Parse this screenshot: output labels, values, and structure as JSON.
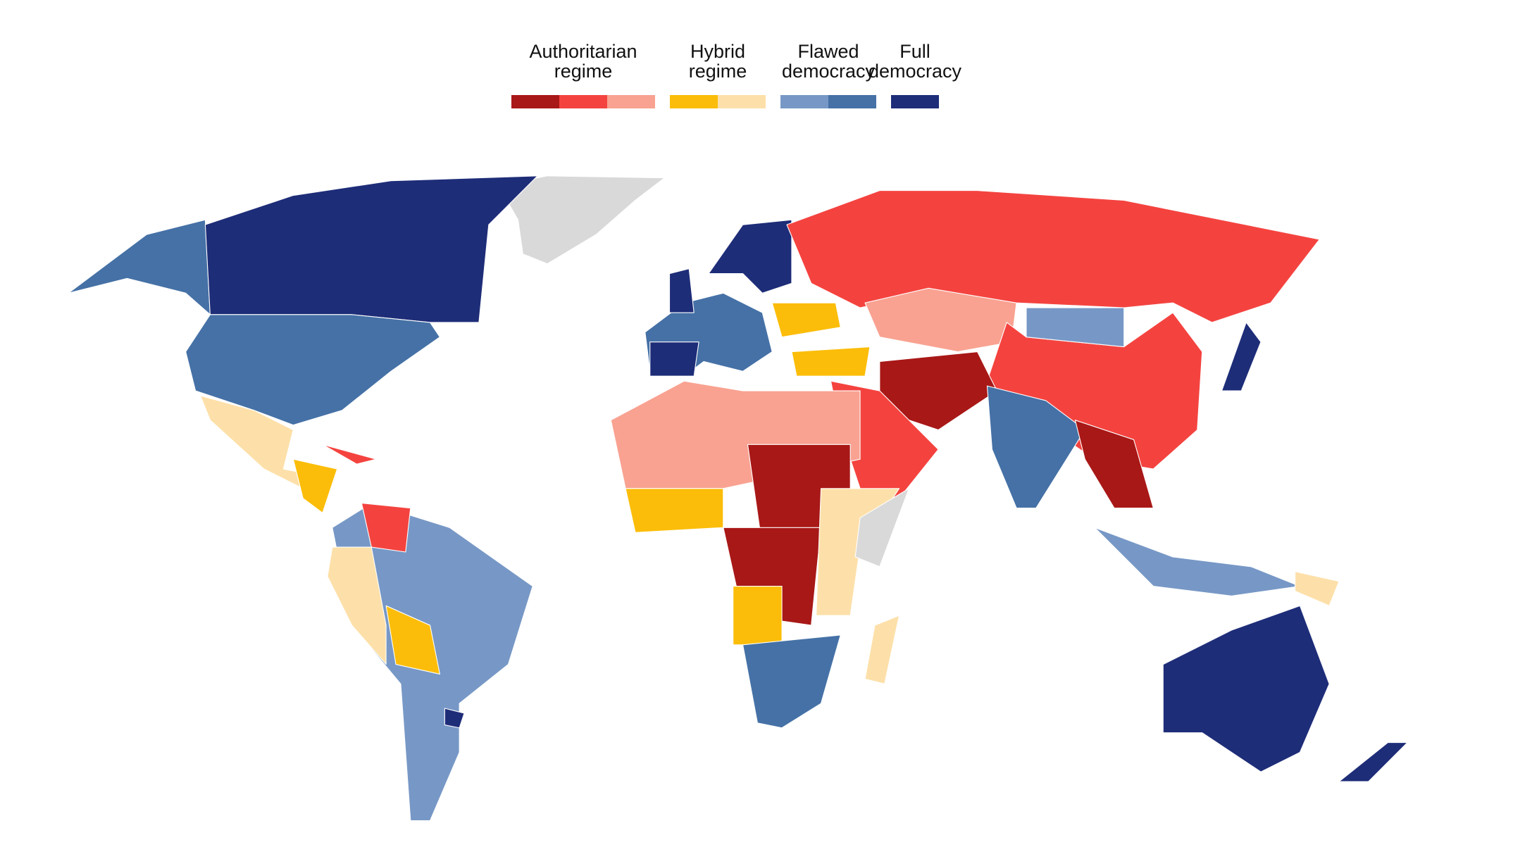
{
  "legend": {
    "groups": [
      {
        "lines": [
          "Authoritarian",
          "regime"
        ],
        "colors": [
          "#a81817",
          "#f4433f",
          "#f9a291"
        ]
      },
      {
        "lines": [
          "Hybrid",
          "regime"
        ],
        "colors": [
          "#fbbd09",
          "#fde0a9"
        ]
      },
      {
        "lines": [
          "Flawed",
          "democracy"
        ],
        "colors": [
          "#7798c6",
          "#4571a6"
        ]
      },
      {
        "lines": [
          "Full",
          "democracy"
        ],
        "colors": [
          "#1e2d78"
        ]
      }
    ]
  }
}
